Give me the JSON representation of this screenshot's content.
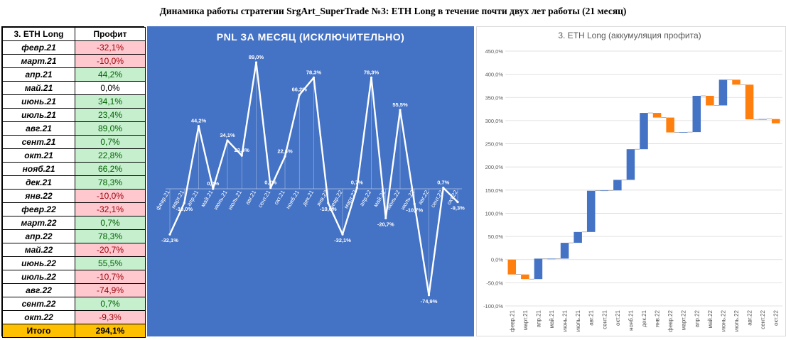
{
  "page_title": "Динамика работы стратегии SrgArt_SuperTrade №3: ETH Long в течение почти двух лет работы (21 месяц)",
  "table": {
    "header_month": "3. ETH Long",
    "header_profit": "Профит",
    "rows": [
      {
        "month": "февр.21",
        "profit": "-32,1%"
      },
      {
        "month": "март.21",
        "profit": "-10,0%"
      },
      {
        "month": "апр.21",
        "profit": "44,2%"
      },
      {
        "month": "май.21",
        "profit": "0,0%"
      },
      {
        "month": "июнь.21",
        "profit": "34,1%"
      },
      {
        "month": "июль.21",
        "profit": "23,4%"
      },
      {
        "month": "авг.21",
        "profit": "89,0%"
      },
      {
        "month": "сент.21",
        "profit": "0,7%"
      },
      {
        "month": "окт.21",
        "profit": "22,8%"
      },
      {
        "month": "нояб.21",
        "profit": "66,2%"
      },
      {
        "month": "дек.21",
        "profit": "78,3%"
      },
      {
        "month": "янв.22",
        "profit": "-10,0%"
      },
      {
        "month": "февр.22",
        "profit": "-32,1%"
      },
      {
        "month": "март.22",
        "profit": "0,7%"
      },
      {
        "month": "апр.22",
        "profit": "78,3%"
      },
      {
        "month": "май.22",
        "profit": "-20,7%"
      },
      {
        "month": "июнь.22",
        "profit": "55,5%"
      },
      {
        "month": "июль.22",
        "profit": "-10,7%"
      },
      {
        "month": "авг.22",
        "profit": "-74,9%"
      },
      {
        "month": "сент.22",
        "profit": "0,7%"
      },
      {
        "month": "окт.22",
        "profit": "-9,3%"
      }
    ],
    "total_label": "Итого",
    "total_value": "294,1%"
  },
  "colors": {
    "pnl_background": "#4472c4",
    "pnl_line": "#ffffff",
    "waterfall_increase": "#4472c4",
    "waterfall_decrease": "#ff7f0e",
    "total_background": "#ffc000",
    "positive_cell": "#c6efce",
    "negative_cell": "#ffc7ce"
  },
  "chart_data": [
    {
      "type": "line",
      "title": "PNL ЗА МЕСЯЦ (ИСКЛЮЧИТЕЛЬНО)",
      "categories": [
        "февр.21",
        "март.21",
        "апр.21",
        "май.21",
        "июнь.21",
        "июль.21",
        "авг.21",
        "сент.21",
        "окт.21",
        "нояб.21",
        "дек.21",
        "янв.22",
        "февр.22",
        "март.22",
        "апр.22",
        "май.22",
        "июнь.22",
        "июль.22",
        "авг.22",
        "сент.22",
        "окт.22"
      ],
      "values": [
        -32.1,
        -10.0,
        44.2,
        0.0,
        34.1,
        23.4,
        89.0,
        0.7,
        22.8,
        66.2,
        78.3,
        -10.0,
        -32.1,
        0.7,
        78.3,
        -20.7,
        55.5,
        -10.7,
        -74.9,
        0.7,
        -9.3
      ],
      "data_labels": [
        "-32,1%",
        "-10,0%",
        "44,2%",
        "0,0%",
        "34,1%",
        "23,4%",
        "89,0%",
        "0,7%",
        "22,8%",
        "66,2%",
        "78,3%",
        "-10,0%",
        "-32,1%",
        "0,7%",
        "78,3%",
        "-20,7%",
        "55,5%",
        "-10,7%",
        "-74,9%",
        "0,7%",
        "-9,3%"
      ],
      "grid": false,
      "legend": "none"
    },
    {
      "type": "bar",
      "subtype": "waterfall",
      "title": "3. ETH Long (аккумуляция профита)",
      "categories": [
        "февр.21",
        "март.21",
        "апр.21",
        "май.21",
        "июнь.21",
        "июль.21",
        "авг.21",
        "сент.21",
        "окт.21",
        "нояб.21",
        "дек.21",
        "янв.22",
        "февр.22",
        "март.22",
        "апр.22",
        "май.22",
        "июнь.22",
        "июль.22",
        "авг.22",
        "сент.22",
        "окт.22"
      ],
      "values": [
        -32.1,
        -10.0,
        44.2,
        0.0,
        34.1,
        23.4,
        89.0,
        0.7,
        22.8,
        66.2,
        78.3,
        -10.0,
        -32.1,
        0.7,
        78.3,
        -20.7,
        55.5,
        -10.7,
        -74.9,
        0.7,
        -9.3
      ],
      "yticks": [
        "-100,0%",
        "-50,0%",
        "0,0%",
        "50,0%",
        "100,0%",
        "150,0%",
        "200,0%",
        "250,0%",
        "300,0%",
        "350,0%",
        "400,0%",
        "450,0%"
      ],
      "ylim": [
        -100,
        450
      ],
      "grid": true,
      "legend": "none"
    }
  ]
}
